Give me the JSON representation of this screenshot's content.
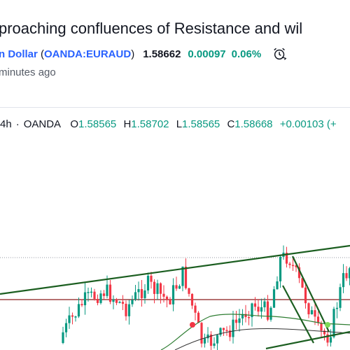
{
  "idea": {
    "title": "proaching confluences of Resistance and wil",
    "symbol_name_tail": "n Dollar",
    "symbol_code": "OANDA:EURAUD",
    "price": "1.58662",
    "change": "0.00097",
    "change_pct": "0.06%",
    "time_ago": "minutes ago",
    "icon": "alarm-clock-icon"
  },
  "chart_header": {
    "interval": "4h",
    "separator": "·",
    "exchange": "OANDA",
    "o_label": "O",
    "o_value": "1.58565",
    "h_label": "H",
    "h_value": "1.58702",
    "l_label": "L",
    "l_value": "1.58565",
    "c_label": "C",
    "c_value": "1.58668",
    "delta": "+0.00103 (+"
  },
  "colors": {
    "up": "#089981",
    "down": "#f23645",
    "trendline": "#1b5e20",
    "link": "#2962ff",
    "resistance": "#8b1a1a"
  }
}
